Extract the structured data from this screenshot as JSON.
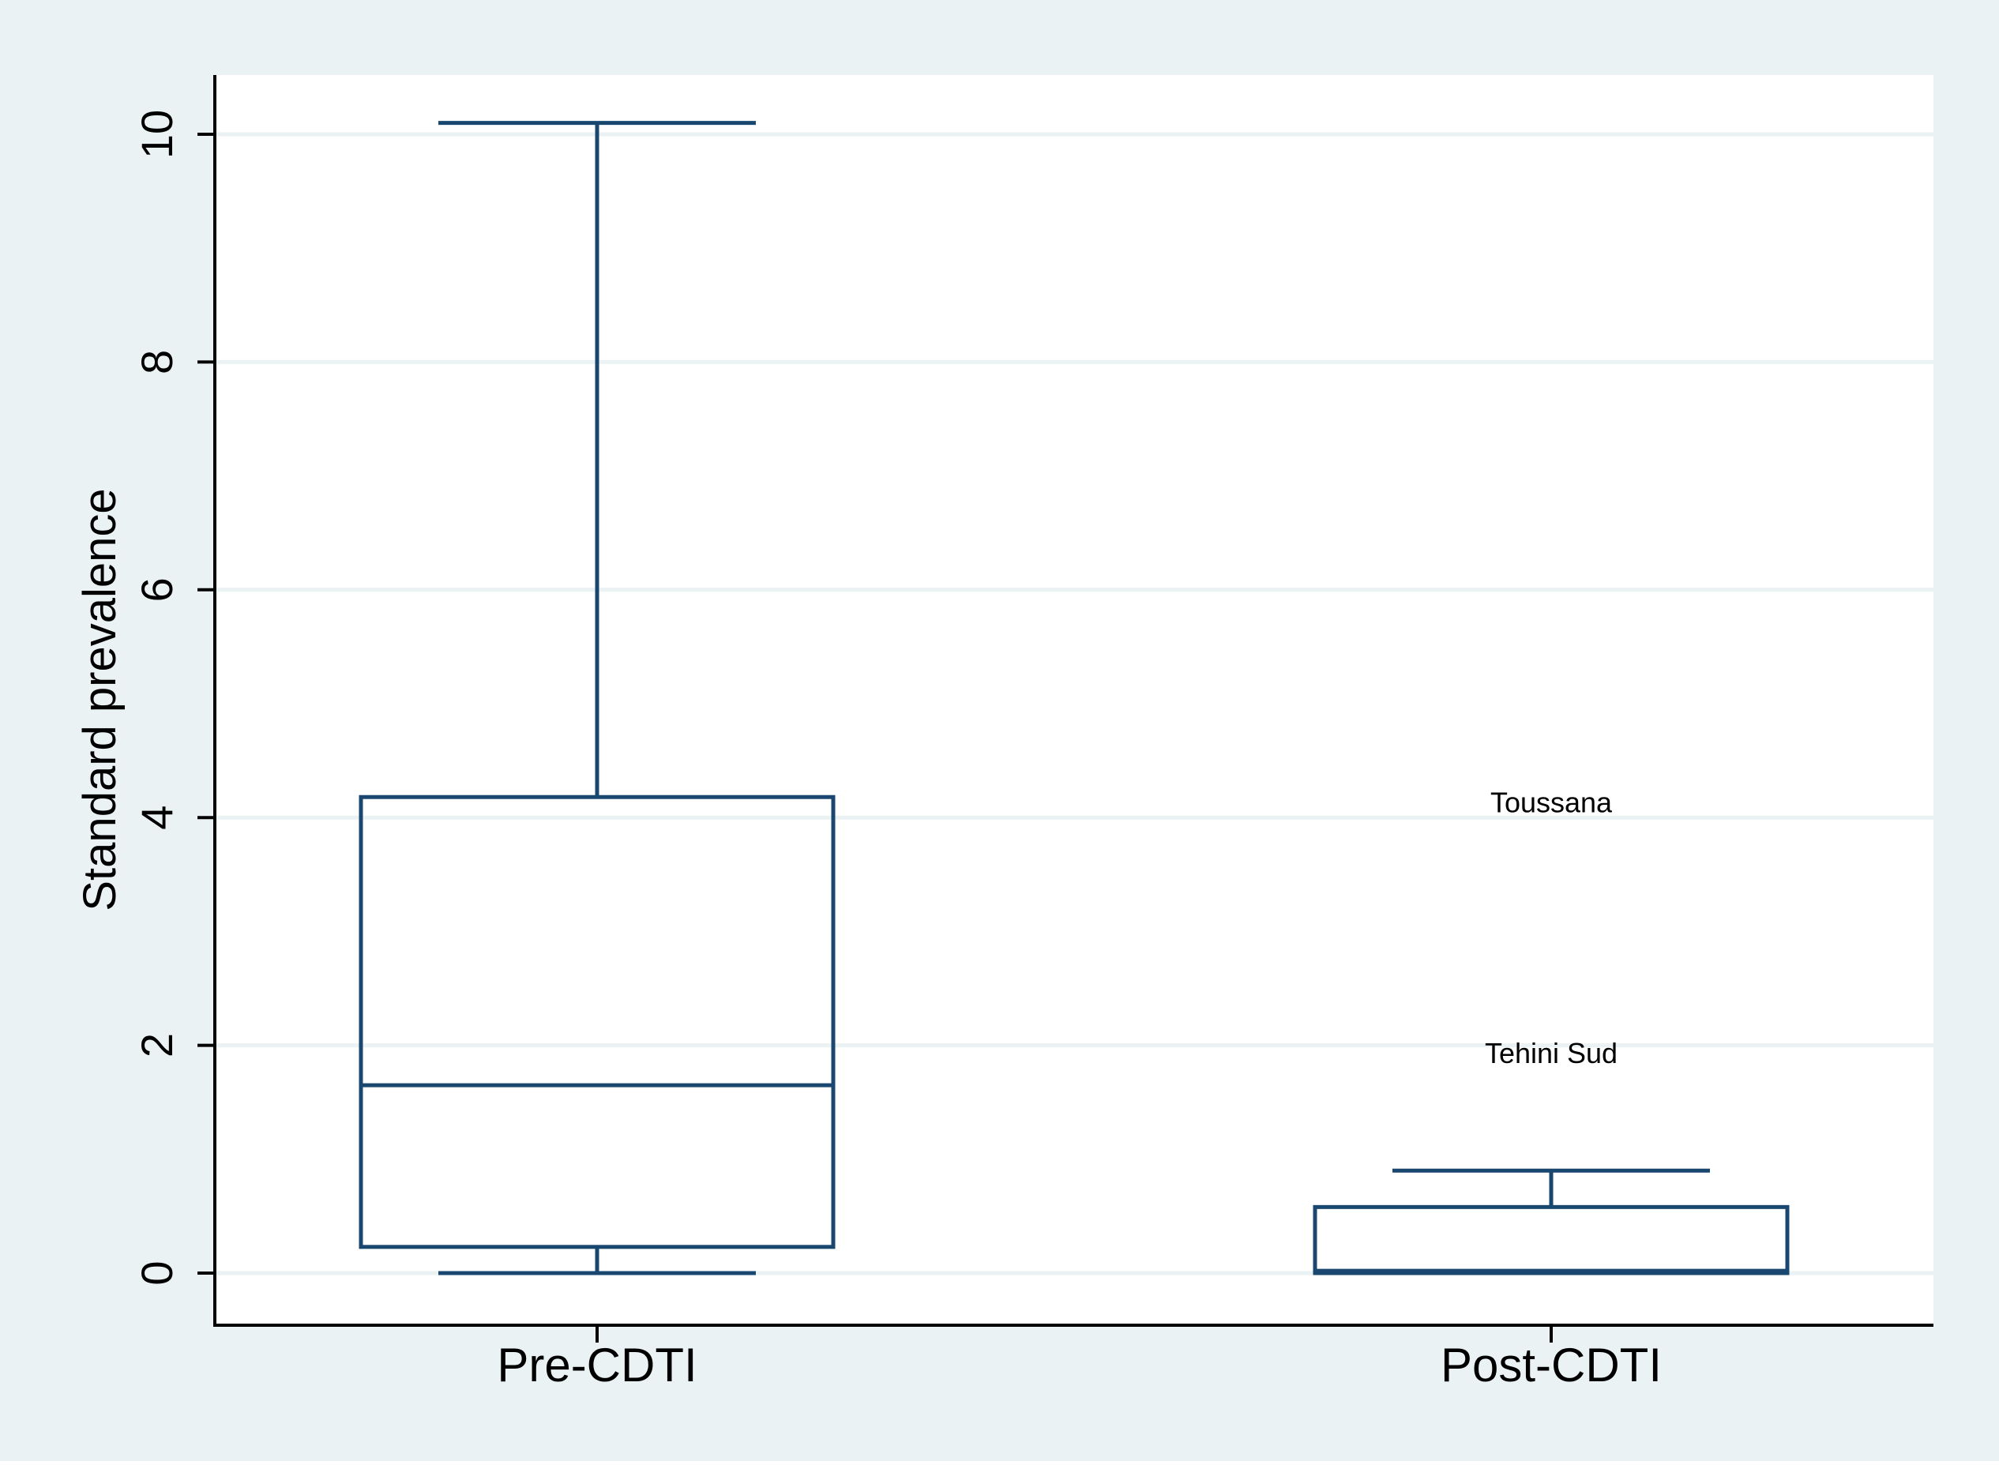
{
  "colors": {
    "outer_background": "#eaf2f3",
    "plot_background": "#ffffff",
    "box_stroke": "#1a476f",
    "gridline": "#eaf2f3",
    "axis": "#000000",
    "text": "#000000"
  },
  "chart_data": {
    "type": "box",
    "title": "",
    "xlabel": "",
    "ylabel": "Standard prevalence",
    "ylim": [
      -0.4,
      10.5
    ],
    "yticks": [
      0,
      2,
      4,
      6,
      8,
      10
    ],
    "ytick_labels": [
      "0",
      "2",
      "4",
      "6",
      "8",
      "10"
    ],
    "grid": true,
    "legend": "none",
    "categories": [
      "Pre-CDTI",
      "Post-CDTI"
    ],
    "boxes": [
      {
        "category": "Pre-CDTI",
        "whisker_low": 0,
        "q1": 0.23,
        "median": 1.65,
        "q3": 4.18,
        "whisker_high": 10.1,
        "outliers": []
      },
      {
        "category": "Post-CDTI",
        "whisker_low": 0,
        "q1": 0,
        "median": 0.02,
        "q3": 0.58,
        "whisker_high": 0.9,
        "outliers": [
          {
            "label": "Toussana",
            "value": 4.15
          },
          {
            "label": "Tehini Sud",
            "value": 1.95
          }
        ]
      }
    ]
  }
}
